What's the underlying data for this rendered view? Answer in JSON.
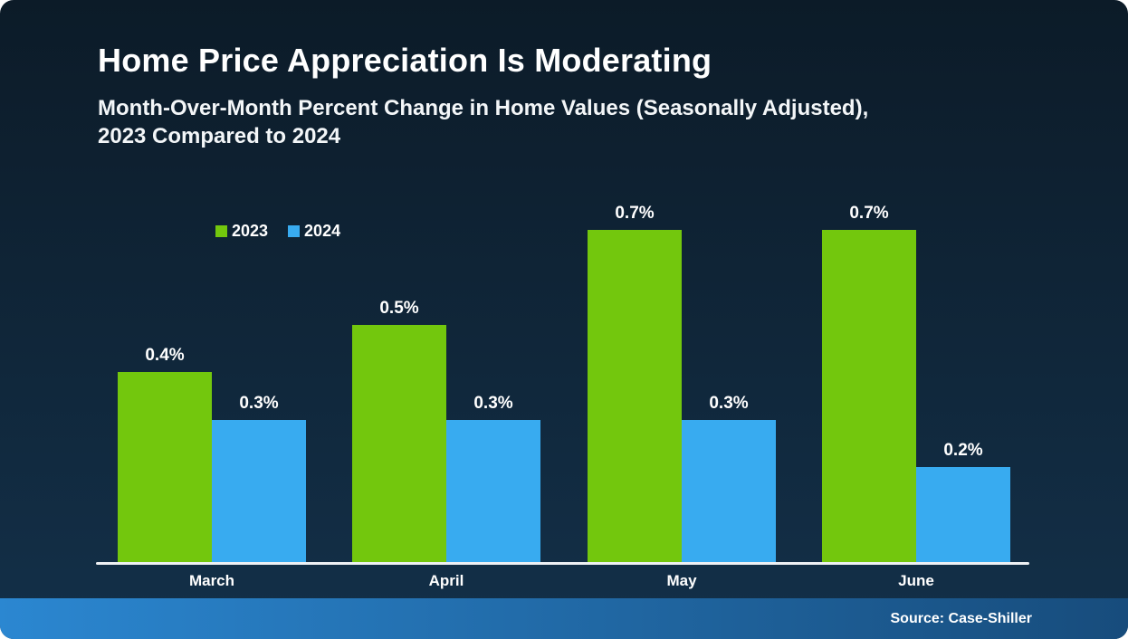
{
  "card": {
    "title": "Home Price Appreciation Is Moderating",
    "subtitle_line1": "Month-Over-Month Percent Change in Home Values (Seasonally Adjusted),",
    "subtitle_line2": "2023 Compared to 2024",
    "source": "Source: Case-Shiller"
  },
  "colors": {
    "background_top": "#0C1B28",
    "background_bottom": "#133049",
    "series_green": "#73C70D",
    "series_blue": "#38ABF0",
    "axis_line": "#EEF1F4",
    "footer_left": "#2B87D1",
    "footer_right": "#174C7C",
    "text": "#FFFFFF"
  },
  "chart_data": {
    "type": "bar",
    "title": "Home Price Appreciation Is Moderating",
    "subtitle": "Month-Over-Month Percent Change in Home Values (Seasonally Adjusted), 2023 Compared to 2024",
    "categories": [
      "March",
      "April",
      "May",
      "June"
    ],
    "series": [
      {
        "name": "2023",
        "color": "#73C70D",
        "values": [
          0.4,
          0.5,
          0.7,
          0.7
        ]
      },
      {
        "name": "2024",
        "color": "#38ABF0",
        "values": [
          0.3,
          0.3,
          0.3,
          0.2
        ]
      }
    ],
    "value_labels": [
      [
        "0.4%",
        "0.5%",
        "0.7%",
        "0.7%"
      ],
      [
        "0.3%",
        "0.3%",
        "0.3%",
        "0.2%"
      ]
    ],
    "unit": "%",
    "ylim": [
      0,
      0.75
    ],
    "grid": false,
    "y_axis_shown": false,
    "legend_position": "top-left",
    "source": "Source: Case-Shiller"
  }
}
